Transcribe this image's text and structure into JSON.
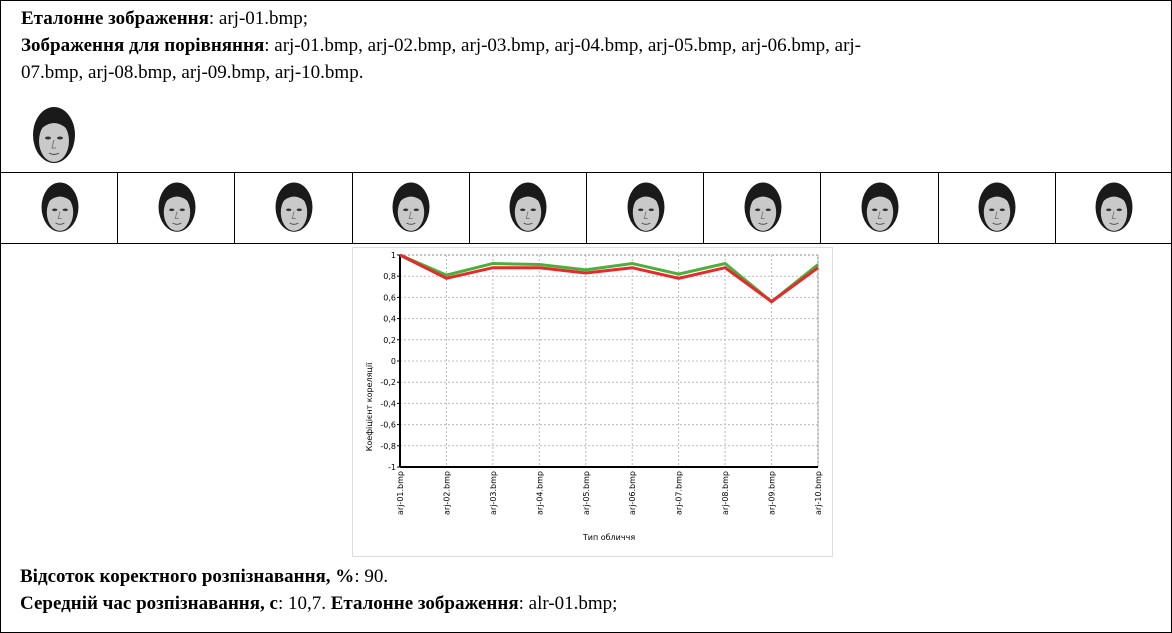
{
  "header": {
    "reference_label": "Еталонне зображення",
    "reference_value": ": arj-01.bmp;",
    "compare_label": "Зображення для порівняння",
    "compare_value": ": arj-01.bmp, arj-02.bmp, arj-03.bmp, arj-04.bmp, arj-05.bmp, arj-06.bmp, arj-07.bmp, arj-08.bmp, arj-09.bmp, arj-10.bmp."
  },
  "chart_data": {
    "type": "line",
    "x_label": "Тип обличчя",
    "y_label": "Коефіцієнт кореляції",
    "categories": [
      "arj-01.bmp",
      "arj-02.bmp",
      "arj-03.bmp",
      "arj-04.bmp",
      "arj-05.bmp",
      "arj-06.bmp",
      "arj-07.bmp",
      "arj-08.bmp",
      "arj-09.bmp",
      "arj-10.bmp"
    ],
    "series": [
      {
        "color": "#4caf3c",
        "values": [
          1,
          0.81,
          0.92,
          0.91,
          0.86,
          0.92,
          0.82,
          0.92,
          0.56,
          0.91
        ]
      },
      {
        "color": "#e8282a",
        "values": [
          1,
          0.78,
          0.88,
          0.88,
          0.83,
          0.88,
          0.78,
          0.88,
          0.56,
          0.88
        ]
      }
    ],
    "ylim": [
      -1,
      1
    ],
    "yticks": [
      -1,
      {
        "value": -0.8,
        "label": "-0,8"
      },
      {
        "value": -0.6,
        "label": "-0,6"
      },
      {
        "value": -0.4,
        "label": "-0,4"
      },
      {
        "value": -0.2,
        "label": "-0,2"
      },
      0,
      {
        "value": 0.2,
        "label": "0,2"
      },
      {
        "value": 0.4,
        "label": "0,4"
      },
      {
        "value": 0.6,
        "label": "0,6"
      },
      {
        "value": 0.8,
        "label": "0,8"
      },
      1
    ],
    "grid": true
  },
  "footer": {
    "accuracy_label": "Відсоток коректного розпізнавання, %",
    "accuracy_value": ": 90.",
    "time_label": "Середній час розпізнавання, с",
    "time_value": ": 10,7. ",
    "next_reference_label": "Еталонне зображення",
    "next_reference_value": ": alr-01.bmp;"
  }
}
